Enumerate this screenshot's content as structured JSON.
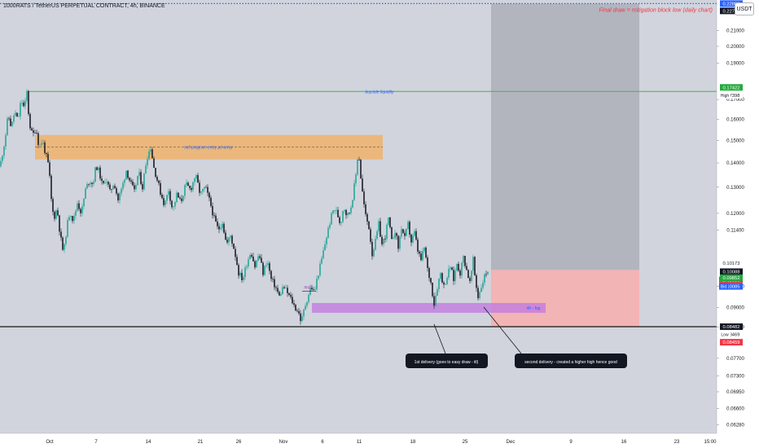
{
  "title": "1000RATS / TetherUS PERPETUAL CONTRACT, 4h, BINANCE",
  "currency": "USDT",
  "colors": {
    "background": "#d1d4dc",
    "candle_up": "#26a69a",
    "candle_down": "#1b1f2a",
    "buyside_line": "#4caf50",
    "order_block": "#f0b26b",
    "fvg_box": "#c27ce0",
    "target_zone": "#b2b5be",
    "stop_zone": "#f2b4b4",
    "dotted_line": "#2962ff",
    "annotation_red": "#f23645",
    "annotation_blue": "#2962ff"
  },
  "chart_data": {
    "type": "candlestick",
    "timeframe": "4h",
    "x_ticks": [
      "Oct",
      "7",
      "14",
      "21",
      "26",
      "Nov",
      "6",
      "11",
      "18",
      "25",
      "Dec",
      "9",
      "16",
      "23",
      "15:00"
    ],
    "y_ticks": [
      0.21,
      0.2,
      0.19,
      0.17,
      0.16,
      0.15,
      0.14,
      0.13,
      0.12,
      0.114,
      0.096,
      0.09,
      0.08469,
      0.077,
      0.073,
      0.0695,
      0.066,
      0.0628
    ],
    "ylim": [
      0.0612,
      0.2305
    ],
    "scale": "log",
    "price_labels": [
      {
        "value": "0.22800",
        "bg": "#2962ff",
        "fg": "#ffffff"
      },
      {
        "value": "0.22791",
        "bg": "#131722",
        "fg": "#ffffff"
      },
      {
        "value": "0.17422",
        "bg": "#22ab3d",
        "fg": "#ffffff"
      },
      {
        "value": "0.17398",
        "bg": "#ffffff",
        "fg": "#131722",
        "tag": "High"
      },
      {
        "value": "0.10173",
        "bg": "#ffffff",
        "fg": "#131722"
      },
      {
        "value": "0.10088",
        "bg": "#131722",
        "fg": "#ffffff",
        "sub": "23:08"
      },
      {
        "value": "0.10086",
        "bg": "#f23645",
        "fg": "#ffffff",
        "tag": "Ask"
      },
      {
        "value": "0.10085",
        "bg": "#2962ff",
        "fg": "#ffffff",
        "tag": "Bid"
      },
      {
        "value": "0.09852",
        "bg": "#22ab3d",
        "fg": "#ffffff"
      },
      {
        "value": "0.08482",
        "bg": "#131722",
        "fg": "#ffffff"
      },
      {
        "value": "0.08469",
        "bg": "#ffffff",
        "fg": "#131722",
        "tag": "Low"
      },
      {
        "value": "0.08459",
        "bg": "#f23645",
        "fg": "#ffffff"
      }
    ],
    "levels": {
      "buyside_liquidity": 0.17422,
      "final_draw": 0.228,
      "low_line": 0.08482,
      "order_block": [
        0.1415,
        0.1525
      ],
      "order_block_mid": 0.147,
      "fvg": [
        0.0885,
        0.0912
      ],
      "position_entry": 0.1009,
      "position_stop": 0.08482,
      "position_target": 0.22791
    },
    "candles_summary": {
      "start_price": 0.1385,
      "path": [
        [
          0,
          0.1385
        ],
        [
          6,
          0.15
        ],
        [
          10,
          0.162
        ],
        [
          14,
          0.156
        ],
        [
          18,
          0.164
        ],
        [
          22,
          0.159
        ],
        [
          26,
          0.17
        ],
        [
          30,
          0.165
        ],
        [
          33,
          0.174
        ],
        [
          36,
          0.158
        ],
        [
          40,
          0.152
        ],
        [
          44,
          0.156
        ],
        [
          48,
          0.147
        ],
        [
          52,
          0.15
        ],
        [
          56,
          0.144
        ],
        [
          60,
          0.138
        ],
        [
          63,
          0.125
        ],
        [
          66,
          0.118
        ],
        [
          70,
          0.122
        ],
        [
          74,
          0.112
        ],
        [
          78,
          0.106
        ],
        [
          82,
          0.115
        ],
        [
          86,
          0.121
        ],
        [
          90,
          0.117
        ],
        [
          95,
          0.124
        ],
        [
          100,
          0.12
        ],
        [
          105,
          0.129
        ],
        [
          110,
          0.133
        ],
        [
          114,
          0.131
        ],
        [
          118,
          0.139
        ],
        [
          122,
          0.136
        ],
        [
          126,
          0.13
        ],
        [
          130,
          0.134
        ],
        [
          135,
          0.128
        ],
        [
          140,
          0.132
        ],
        [
          145,
          0.125
        ],
        [
          150,
          0.13
        ],
        [
          155,
          0.137
        ],
        [
          160,
          0.132
        ],
        [
          165,
          0.128
        ],
        [
          170,
          0.136
        ],
        [
          175,
          0.13
        ],
        [
          180,
          0.142
        ],
        [
          185,
          0.147
        ],
        [
          189,
          0.138
        ],
        [
          193,
          0.133
        ],
        [
          197,
          0.128
        ],
        [
          202,
          0.123
        ],
        [
          207,
          0.129
        ],
        [
          212,
          0.121
        ],
        [
          217,
          0.127
        ],
        [
          222,
          0.124
        ],
        [
          228,
          0.131
        ],
        [
          234,
          0.129
        ],
        [
          240,
          0.135
        ],
        [
          246,
          0.127
        ],
        [
          252,
          0.13
        ],
        [
          258,
          0.124
        ],
        [
          263,
          0.118
        ],
        [
          268,
          0.114
        ],
        [
          273,
          0.117
        ],
        [
          278,
          0.109
        ],
        [
          283,
          0.112
        ],
        [
          288,
          0.107
        ],
        [
          293,
          0.1
        ],
        [
          298,
          0.098
        ],
        [
          303,
          0.103
        ],
        [
          308,
          0.107
        ],
        [
          313,
          0.102
        ],
        [
          318,
          0.106
        ],
        [
          323,
          0.1
        ],
        [
          328,
          0.104
        ],
        [
          333,
          0.098
        ],
        [
          338,
          0.096
        ],
        [
          343,
          0.093
        ],
        [
          348,
          0.096
        ],
        [
          353,
          0.094
        ],
        [
          358,
          0.092
        ],
        [
          362,
          0.09
        ],
        [
          366,
          0.089
        ],
        [
          370,
          0.086
        ],
        [
          374,
          0.09
        ],
        [
          378,
          0.093
        ],
        [
          382,
          0.096
        ],
        [
          386,
          0.094
        ],
        [
          390,
          0.099
        ],
        [
          394,
          0.103
        ],
        [
          398,
          0.108
        ],
        [
          402,
          0.113
        ],
        [
          406,
          0.118
        ],
        [
          410,
          0.122
        ],
        [
          414,
          0.12
        ],
        [
          418,
          0.116
        ],
        [
          422,
          0.123
        ],
        [
          426,
          0.119
        ],
        [
          430,
          0.121
        ],
        [
          434,
          0.128
        ],
        [
          437,
          0.135
        ],
        [
          440,
          0.146
        ],
        [
          443,
          0.134
        ],
        [
          446,
          0.125
        ],
        [
          449,
          0.119
        ],
        [
          453,
          0.115
        ],
        [
          457,
          0.106
        ],
        [
          461,
          0.11
        ],
        [
          465,
          0.116
        ],
        [
          469,
          0.109
        ],
        [
          473,
          0.112
        ],
        [
          477,
          0.118
        ],
        [
          481,
          0.11
        ],
        [
          485,
          0.114
        ],
        [
          489,
          0.108
        ],
        [
          493,
          0.115
        ],
        [
          497,
          0.111
        ],
        [
          501,
          0.116
        ],
        [
          505,
          0.11
        ],
        [
          509,
          0.113
        ],
        [
          513,
          0.107
        ],
        [
          517,
          0.104
        ],
        [
          521,
          0.108
        ],
        [
          525,
          0.101
        ],
        [
          529,
          0.097
        ],
        [
          533,
          0.091
        ],
        [
          537,
          0.096
        ],
        [
          541,
          0.1
        ],
        [
          545,
          0.096
        ],
        [
          549,
          0.099
        ],
        [
          553,
          0.102
        ],
        [
          557,
          0.098
        ],
        [
          561,
          0.103
        ],
        [
          565,
          0.1
        ],
        [
          569,
          0.105
        ],
        [
          573,
          0.101
        ],
        [
          577,
          0.097
        ],
        [
          581,
          0.104
        ],
        [
          584,
          0.097
        ],
        [
          587,
          0.093
        ],
        [
          591,
          0.096
        ],
        [
          595,
          0.099
        ],
        [
          599,
          0.1009
        ]
      ]
    }
  },
  "annotations": {
    "buyside": "buyside liquidity",
    "sell_program": "sell program entry pd array",
    "final_draw": "Final draw = mitigation block low (daily chart)",
    "mss": "mss",
    "fvg": "4h - fvg",
    "first_delivery": "1st delivery (goes to easy draw - itl)",
    "second_delivery": "second delivery - created a higher high hence good"
  }
}
